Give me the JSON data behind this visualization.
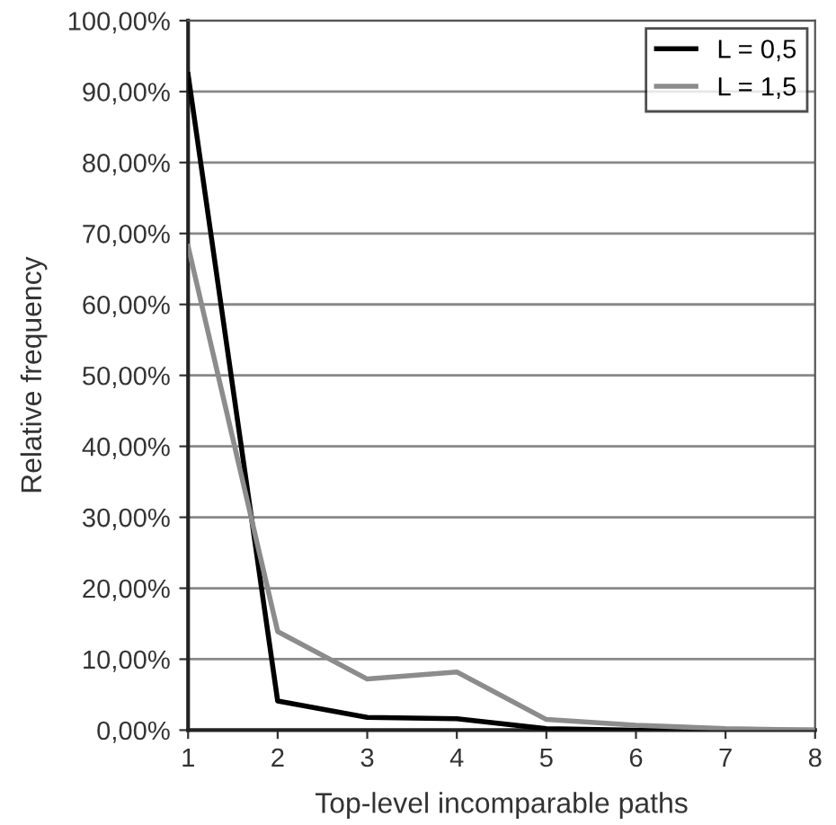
{
  "chart_data": {
    "type": "line",
    "xlabel": "Top-level incomparable paths",
    "ylabel": "Relative frequency",
    "x": [
      1,
      2,
      3,
      4,
      5,
      6,
      7,
      8
    ],
    "series": [
      {
        "name": "L = 0,5",
        "color": "#000000",
        "values": [
          92.4,
          4.1,
          1.8,
          1.6,
          0.2,
          0,
          0,
          0
        ]
      },
      {
        "name": "L = 1,5",
        "color": "#8c8c8c",
        "values": [
          68.2,
          13.9,
          7.2,
          8.2,
          1.5,
          0.7,
          0.2,
          0
        ]
      }
    ],
    "xlim": [
      1,
      8
    ],
    "xticks": [
      1,
      2,
      3,
      4,
      5,
      6,
      7,
      8
    ],
    "ylim": [
      0,
      100
    ],
    "yticks": [
      {
        "value": 0,
        "label": "0,00%"
      },
      {
        "value": 10,
        "label": "10,00%"
      },
      {
        "value": 20,
        "label": "20,00%"
      },
      {
        "value": 30,
        "label": "30,00%"
      },
      {
        "value": 40,
        "label": "40,00%"
      },
      {
        "value": 50,
        "label": "50,00%"
      },
      {
        "value": 60,
        "label": "60,00%"
      },
      {
        "value": 70,
        "label": "70,00%"
      },
      {
        "value": 80,
        "label": "80,00%"
      },
      {
        "value": 90,
        "label": "90,00%"
      },
      {
        "value": 100,
        "label": "100,00%"
      }
    ],
    "grid": "y",
    "legend": "top right",
    "marker": "none",
    "line_style": "solid"
  }
}
